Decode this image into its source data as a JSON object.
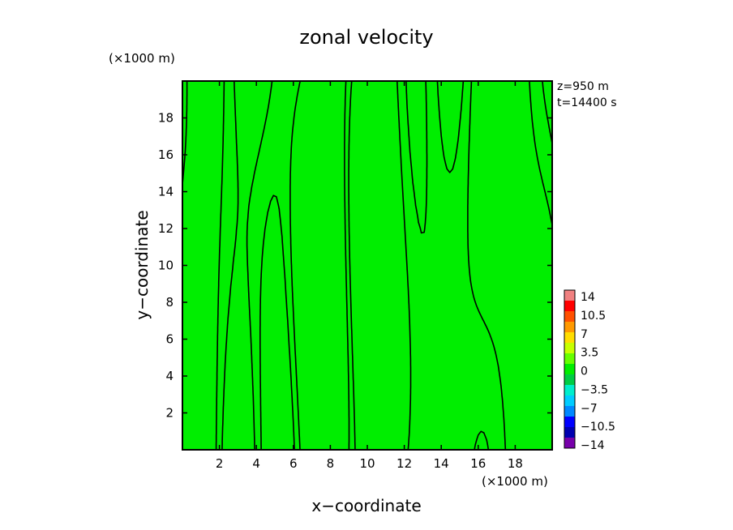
{
  "chart_data": {
    "type": "heatmap",
    "title": "zonal velocity",
    "xlabel": "x−coordinate",
    "ylabel": "y−coordinate",
    "x_unit": "(×1000 m)",
    "y_unit": "(×1000 m)",
    "annotations": [
      "z=950 m",
      "t=14400 s"
    ],
    "xlim": [
      0,
      20
    ],
    "ylim": [
      0,
      20
    ],
    "xticks": [
      2,
      4,
      6,
      8,
      10,
      12,
      14,
      16,
      18
    ],
    "yticks": [
      2,
      4,
      6,
      8,
      10,
      12,
      14,
      16,
      18
    ],
    "field_color": "#00ee00",
    "contour_color": "#000000",
    "grid": false,
    "colorbar": {
      "levels": [
        "14",
        "10.5",
        "7",
        "3.5",
        "0",
        "−3.5",
        "−7",
        "−10.5",
        "−14"
      ],
      "colors": [
        "#f08080",
        "#ff0000",
        "#ff5000",
        "#ff9900",
        "#ffdd00",
        "#c8ff00",
        "#66ff00",
        "#00ee00",
        "#00cc44",
        "#00eecc",
        "#00ccff",
        "#0088ff",
        "#0000ff",
        "#0000b0",
        "#7700aa"
      ]
    }
  }
}
